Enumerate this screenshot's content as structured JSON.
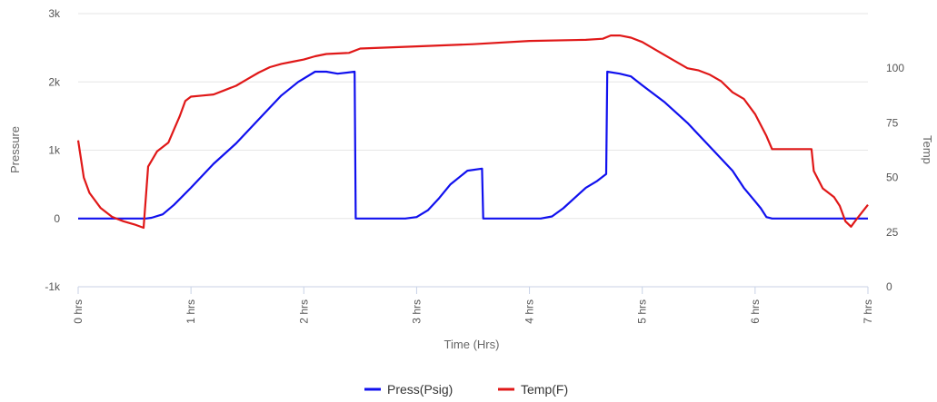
{
  "chart_data": {
    "type": "line",
    "xlabel": "Time (Hrs)",
    "ylabel_left": "Pressure",
    "ylabel_right": "Temp",
    "x_range": [
      0,
      7
    ],
    "y_left_range": [
      -1000,
      3000
    ],
    "y_right_range": [
      0,
      125
    ],
    "x_ticks": [
      "0 hrs",
      "1 hrs",
      "2 hrs",
      "3 hrs",
      "4 hrs",
      "5 hrs",
      "6 hrs",
      "7 hrs"
    ],
    "y_left_ticks": [
      "3k",
      "2k",
      "1k",
      "0",
      "-1k"
    ],
    "y_right_ticks": [
      "100",
      "75",
      "50",
      "25",
      "0"
    ],
    "grid": true,
    "legend_position": "bottom-center",
    "series": [
      {
        "name": "Press(Psig)",
        "axis": "left",
        "color": "#1010ee",
        "points": [
          [
            0,
            0
          ],
          [
            0.6,
            0
          ],
          [
            0.65,
            10
          ],
          [
            0.75,
            60
          ],
          [
            0.85,
            200
          ],
          [
            1.0,
            450
          ],
          [
            1.2,
            800
          ],
          [
            1.4,
            1100
          ],
          [
            1.6,
            1450
          ],
          [
            1.8,
            1800
          ],
          [
            1.95,
            2000
          ],
          [
            2.1,
            2150
          ],
          [
            2.2,
            2150
          ],
          [
            2.3,
            2120
          ],
          [
            2.45,
            2150
          ],
          [
            2.46,
            0
          ],
          [
            2.9,
            0
          ],
          [
            3.0,
            20
          ],
          [
            3.1,
            120
          ],
          [
            3.2,
            300
          ],
          [
            3.3,
            500
          ],
          [
            3.45,
            700
          ],
          [
            3.58,
            730
          ],
          [
            3.59,
            0
          ],
          [
            4.1,
            0
          ],
          [
            4.2,
            30
          ],
          [
            4.3,
            150
          ],
          [
            4.4,
            300
          ],
          [
            4.5,
            450
          ],
          [
            4.6,
            550
          ],
          [
            4.68,
            650
          ],
          [
            4.69,
            2150
          ],
          [
            4.8,
            2120
          ],
          [
            4.9,
            2080
          ],
          [
            5.0,
            1950
          ],
          [
            5.2,
            1700
          ],
          [
            5.4,
            1400
          ],
          [
            5.6,
            1050
          ],
          [
            5.8,
            700
          ],
          [
            5.9,
            450
          ],
          [
            6.0,
            250
          ],
          [
            6.05,
            150
          ],
          [
            6.1,
            20
          ],
          [
            6.15,
            0
          ],
          [
            7.0,
            0
          ]
        ]
      },
      {
        "name": "Temp(F)",
        "axis": "right",
        "color": "#e01818",
        "points": [
          [
            0,
            67
          ],
          [
            0.05,
            50
          ],
          [
            0.1,
            43
          ],
          [
            0.2,
            36
          ],
          [
            0.3,
            32
          ],
          [
            0.4,
            30
          ],
          [
            0.5,
            28.5
          ],
          [
            0.58,
            27
          ],
          [
            0.62,
            55
          ],
          [
            0.7,
            62
          ],
          [
            0.8,
            66
          ],
          [
            0.85,
            72
          ],
          [
            0.9,
            78
          ],
          [
            0.95,
            85
          ],
          [
            1.0,
            87
          ],
          [
            1.1,
            87.5
          ],
          [
            1.2,
            88
          ],
          [
            1.3,
            90
          ],
          [
            1.4,
            92
          ],
          [
            1.5,
            95
          ],
          [
            1.6,
            98
          ],
          [
            1.7,
            100.5
          ],
          [
            1.8,
            102
          ],
          [
            1.9,
            103
          ],
          [
            2.0,
            104
          ],
          [
            2.1,
            105.5
          ],
          [
            2.2,
            106.5
          ],
          [
            2.4,
            107
          ],
          [
            2.5,
            109
          ],
          [
            3.0,
            110
          ],
          [
            3.5,
            111
          ],
          [
            4.0,
            112.5
          ],
          [
            4.5,
            113
          ],
          [
            4.65,
            113.5
          ],
          [
            4.72,
            115
          ],
          [
            4.8,
            115
          ],
          [
            4.9,
            114
          ],
          [
            5.0,
            112
          ],
          [
            5.2,
            106
          ],
          [
            5.4,
            100
          ],
          [
            5.5,
            99
          ],
          [
            5.6,
            97
          ],
          [
            5.7,
            94
          ],
          [
            5.8,
            89
          ],
          [
            5.9,
            86
          ],
          [
            6.0,
            79
          ],
          [
            6.1,
            69
          ],
          [
            6.15,
            63
          ],
          [
            6.3,
            63
          ],
          [
            6.5,
            63
          ],
          [
            6.52,
            53
          ],
          [
            6.6,
            45
          ],
          [
            6.7,
            41
          ],
          [
            6.75,
            37
          ],
          [
            6.8,
            30
          ],
          [
            6.85,
            27.5
          ],
          [
            6.9,
            31
          ],
          [
            7.0,
            37.5
          ]
        ]
      }
    ]
  }
}
